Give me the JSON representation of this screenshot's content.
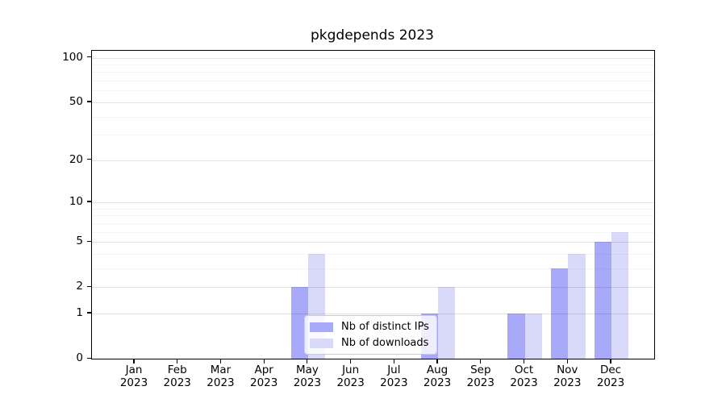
{
  "chart_data": {
    "type": "bar",
    "title": "pkgdepends 2023",
    "categories": [
      "Jan 2023",
      "Feb 2023",
      "Mar 2023",
      "Apr 2023",
      "May 2023",
      "Jun 2023",
      "Jul 2023",
      "Aug 2023",
      "Sep 2023",
      "Oct 2023",
      "Nov 2023",
      "Dec 2023"
    ],
    "series": [
      {
        "name": "Nb of distinct IPs",
        "color": "#a9a9f9",
        "values": [
          0,
          0,
          0,
          0,
          2,
          0,
          0,
          1,
          0,
          1,
          3,
          5
        ]
      },
      {
        "name": "Nb of downloads",
        "color": "#d9d9f9",
        "values": [
          0,
          0,
          0,
          0,
          4,
          0,
          0,
          2,
          0,
          1,
          4,
          6
        ]
      }
    ],
    "yscale": "log1p",
    "yticks": [
      0,
      1,
      2,
      5,
      10,
      20,
      50,
      100
    ],
    "minor_yticks": [
      3,
      4,
      6,
      7,
      8,
      9,
      30,
      40,
      60,
      70,
      80,
      90
    ],
    "ylim": [
      0,
      112
    ],
    "grid": "horizontal",
    "legend_position": "inside lower-center",
    "colors": {
      "axis": "#000000",
      "grid_major": "#e5e5e5",
      "grid_minor": "#f5f5f5",
      "text": "#000000"
    }
  }
}
